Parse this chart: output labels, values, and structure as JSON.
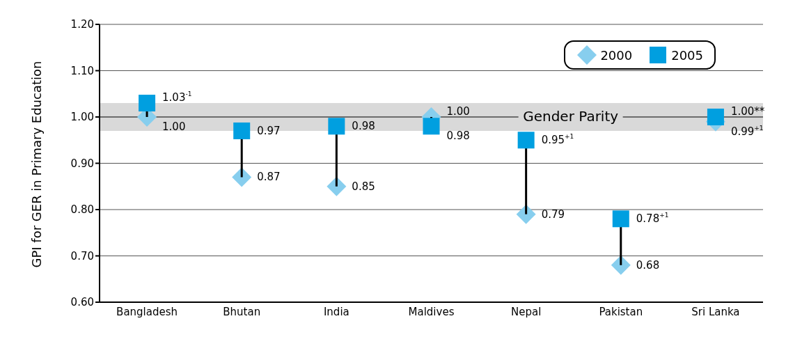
{
  "chart_data": {
    "type": "scatter",
    "ylabel": "GPI for GER in Primary Education",
    "categories": [
      "Bangladesh",
      "Bhutan",
      "India",
      "Maldives",
      "Nepal",
      "Pakistan",
      "Sri Lanka"
    ],
    "series": [
      {
        "name": "2000",
        "color": "#87ceee",
        "marker": "diamond",
        "values": [
          1.0,
          0.87,
          0.85,
          1.0,
          0.79,
          0.68,
          0.99
        ],
        "value_labels": [
          "1.00",
          "0.87",
          "0.85",
          "1.00",
          "0.79",
          "0.68",
          "0.99$^{+1}$"
        ]
      },
      {
        "name": "2005",
        "color": "#009fe0",
        "marker": "square",
        "values": [
          1.03,
          0.97,
          0.98,
          0.98,
          0.95,
          0.78,
          1.0
        ],
        "value_labels": [
          "1.03$^{-1}$",
          "0.97",
          "0.98",
          "0.98",
          "0.95$^{+1}$",
          "0.78$^{+1}$",
          "1.00**"
        ]
      }
    ],
    "ylim": [
      0.6,
      1.2
    ],
    "yticks": [
      {
        "value": 0.6,
        "label": "0.60"
      },
      {
        "value": 0.7,
        "label": "0.70"
      },
      {
        "value": 0.8,
        "label": "0.80"
      },
      {
        "value": 0.9,
        "label": "0.90"
      },
      {
        "value": 1.0,
        "label": "1.00"
      },
      {
        "value": 1.1,
        "label": "1.10"
      },
      {
        "value": 1.2,
        "label": "1.20"
      }
    ],
    "grid": "y",
    "legend": "top right",
    "ref_lines": [
      {
        "axis": "y",
        "value": 1.0,
        "label": "Gender Parity",
        "color": "#000000"
      }
    ],
    "bands": [
      {
        "axis": "y",
        "from": 0.97,
        "to": 1.03,
        "color": "#d9d9d9"
      }
    ]
  }
}
